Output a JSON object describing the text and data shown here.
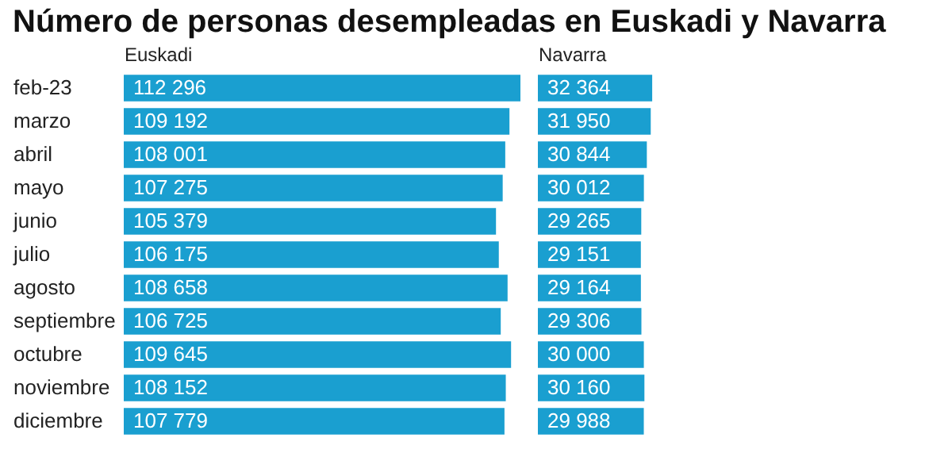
{
  "chart_data": [
    {
      "type": "bar",
      "orientation": "horizontal",
      "title": "Número de personas desempleadas en Euskadi y Navarra",
      "xlabel": "Euskadi",
      "categories": [
        "feb-23",
        "marzo",
        "abril",
        "mayo",
        "junio",
        "julio",
        "agosto",
        "septiembre",
        "octubre",
        "noviembre",
        "diciembre"
      ],
      "values": [
        112296,
        109192,
        108001,
        107275,
        105379,
        106175,
        108658,
        106725,
        109645,
        108152,
        107779
      ],
      "color": "#1a9fd0",
      "data_labels": true,
      "grid": false
    },
    {
      "type": "bar",
      "orientation": "horizontal",
      "xlabel": "Navarra",
      "categories": [
        null,
        null,
        null,
        null,
        null,
        null,
        null,
        null,
        null,
        null,
        null
      ],
      "values": [
        32364,
        31950,
        30844,
        30012,
        29265,
        29151,
        29164,
        29306,
        30000,
        30160,
        29988
      ],
      "color": "#1a9fd0",
      "data_labels": true,
      "grid": false,
      "tick_labels": false
    }
  ]
}
